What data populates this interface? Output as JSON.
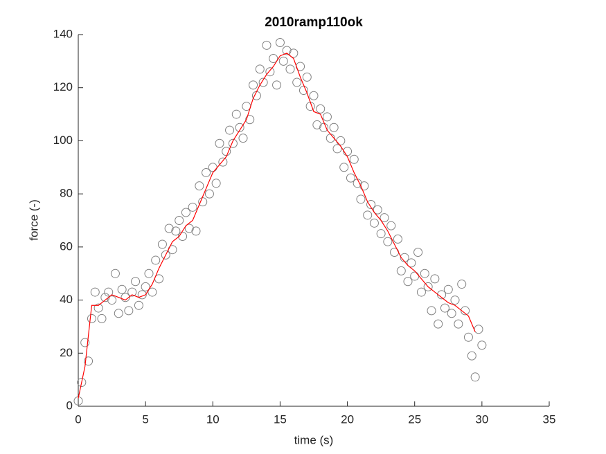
{
  "chart_data": {
    "type": "scatter",
    "title": "2010ramp110ok",
    "x_label": "time (s)",
    "y_label": "force (-)",
    "xlim": [
      0,
      35
    ],
    "xticks": [
      0,
      5,
      10,
      15,
      20,
      25,
      30,
      35
    ],
    "ylim": [
      0,
      140
    ],
    "yticks": [
      0,
      20,
      40,
      60,
      80,
      100,
      120,
      140
    ],
    "grid": false,
    "series": [
      {
        "type": "scatter",
        "color": "#808080",
        "x": [
          0,
          0.25,
          0.5,
          0.75,
          1,
          1.25,
          1.5,
          1.75,
          2,
          2.25,
          2.5,
          2.75,
          3,
          3.25,
          3.5,
          3.75,
          4,
          4.25,
          4.5,
          4.75,
          5,
          5.25,
          5.5,
          5.75,
          6,
          6.25,
          6.5,
          6.75,
          7,
          7.25,
          7.5,
          7.75,
          8,
          8.25,
          8.5,
          8.75,
          9,
          9.25,
          9.5,
          9.75,
          10,
          10.25,
          10.5,
          10.75,
          11,
          11.25,
          11.5,
          11.75,
          12,
          12.25,
          12.5,
          12.75,
          13,
          13.25,
          13.5,
          13.75,
          14,
          14.25,
          14.5,
          14.75,
          15,
          15.25,
          15.5,
          15.75,
          16,
          16.25,
          16.5,
          16.75,
          17,
          17.25,
          17.5,
          17.75,
          18,
          18.25,
          18.5,
          18.75,
          19,
          19.25,
          19.5,
          19.75,
          20,
          20.25,
          20.5,
          20.75,
          21,
          21.25,
          21.5,
          21.75,
          22,
          22.25,
          22.5,
          22.75,
          23,
          23.25,
          23.5,
          23.75,
          24,
          24.25,
          24.5,
          24.75,
          25,
          25.25,
          25.5,
          25.75,
          26,
          26.25,
          26.5,
          26.75,
          27,
          27.25,
          27.5,
          27.75,
          28,
          28.25,
          28.5,
          28.75,
          29,
          29.25,
          29.5,
          29.75,
          30
        ],
        "values": [
          2,
          9,
          24,
          17,
          33,
          43,
          37,
          33,
          41,
          43,
          40,
          50,
          35,
          44,
          41,
          36,
          43,
          47,
          38,
          42,
          45,
          50,
          43,
          55,
          48,
          61,
          57,
          67,
          59,
          66,
          70,
          64,
          73,
          67,
          75,
          66,
          83,
          77,
          88,
          80,
          90,
          84,
          99,
          92,
          96,
          104,
          99,
          110,
          105,
          101,
          113,
          108,
          121,
          117,
          127,
          122,
          136,
          126,
          131,
          121,
          137,
          130,
          134,
          127,
          133,
          122,
          128,
          119,
          124,
          113,
          117,
          106,
          112,
          105,
          109,
          101,
          105,
          97,
          100,
          90,
          96,
          86,
          93,
          84,
          78,
          83,
          72,
          76,
          69,
          74,
          65,
          71,
          62,
          68,
          58,
          63,
          51,
          56,
          47,
          54,
          49,
          58,
          43,
          50,
          45,
          36,
          48,
          31,
          42,
          37,
          44,
          35,
          40,
          31,
          46,
          36,
          26,
          19,
          11,
          29,
          23
        ]
      },
      {
        "type": "line",
        "color": "#ff0000",
        "x": [
          0,
          0.5,
          1,
          1.5,
          2,
          2.5,
          3,
          3.5,
          4,
          4.5,
          5,
          5.5,
          6,
          6.5,
          7,
          7.5,
          8,
          8.5,
          9,
          9.5,
          10,
          10.5,
          11,
          11.5,
          12,
          12.5,
          13,
          13.5,
          14,
          14.5,
          15,
          15.5,
          16,
          16.5,
          17,
          17.5,
          18,
          18.5,
          19,
          19.5,
          20,
          20.5,
          21,
          21.5,
          22,
          22.5,
          23,
          23.5,
          24,
          24.5,
          25,
          25.5,
          26,
          26.5,
          27,
          27.5,
          28,
          28.5,
          29,
          29.5
        ],
        "values": [
          3,
          15,
          38,
          38,
          40,
          42,
          41,
          40,
          42,
          41,
          42,
          46,
          52,
          57,
          62,
          64,
          68,
          70,
          76,
          82,
          88,
          91,
          94,
          100,
          104,
          108,
          116,
          121,
          125,
          128,
          132,
          133,
          131,
          124,
          118,
          111,
          110,
          104,
          101,
          98,
          94,
          88,
          83,
          77,
          73,
          70,
          66,
          61,
          56,
          53,
          51,
          48,
          45,
          43,
          41,
          39,
          38,
          36,
          34,
          28
        ]
      }
    ]
  }
}
